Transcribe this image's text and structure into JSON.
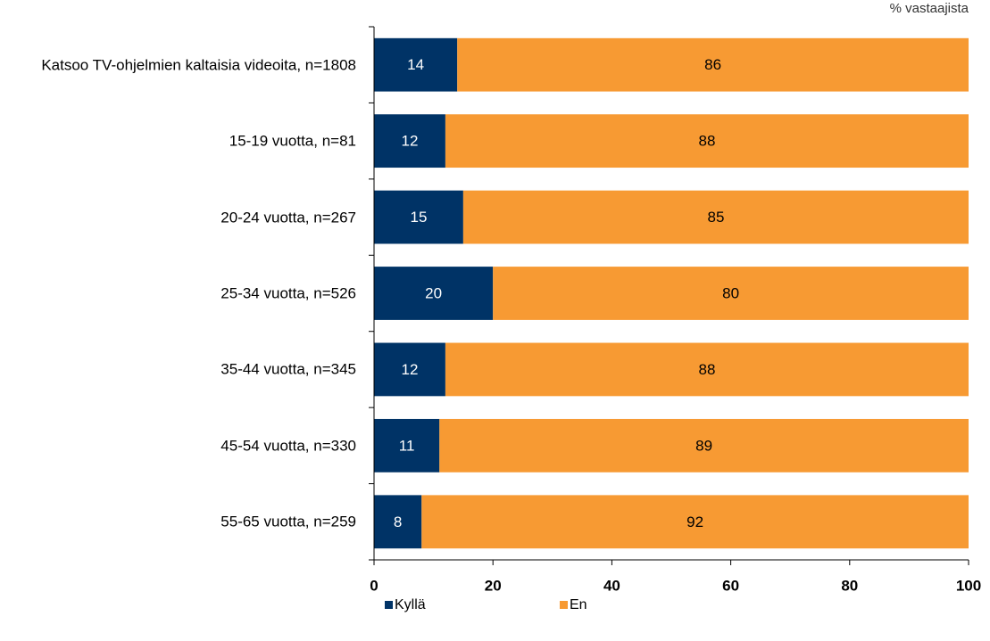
{
  "chart_data": {
    "type": "stacked-barh",
    "unit_label": "% vastaajista",
    "categories": [
      "Katsoo TV-ohjelmien kaltaisia videoita, n=1808",
      "15-19 vuotta, n=81",
      "20-24 vuotta, n=267",
      "25-34 vuotta, n=526",
      "35-44 vuotta, n=345",
      "45-54 vuotta, n=330",
      "55-65 vuotta, n=259"
    ],
    "series": [
      {
        "name": "Kyllä",
        "color": "#003366",
        "label_color": "#ffffff",
        "values": [
          14,
          12,
          15,
          20,
          12,
          11,
          8
        ]
      },
      {
        "name": "En",
        "color": "#f79a33",
        "label_color": "#000000",
        "values": [
          86,
          88,
          85,
          80,
          88,
          89,
          92
        ]
      }
    ],
    "xlim": [
      0,
      100
    ],
    "xticks": [
      0,
      20,
      40,
      60,
      80,
      100
    ],
    "grid": false,
    "legend": "bottom"
  }
}
